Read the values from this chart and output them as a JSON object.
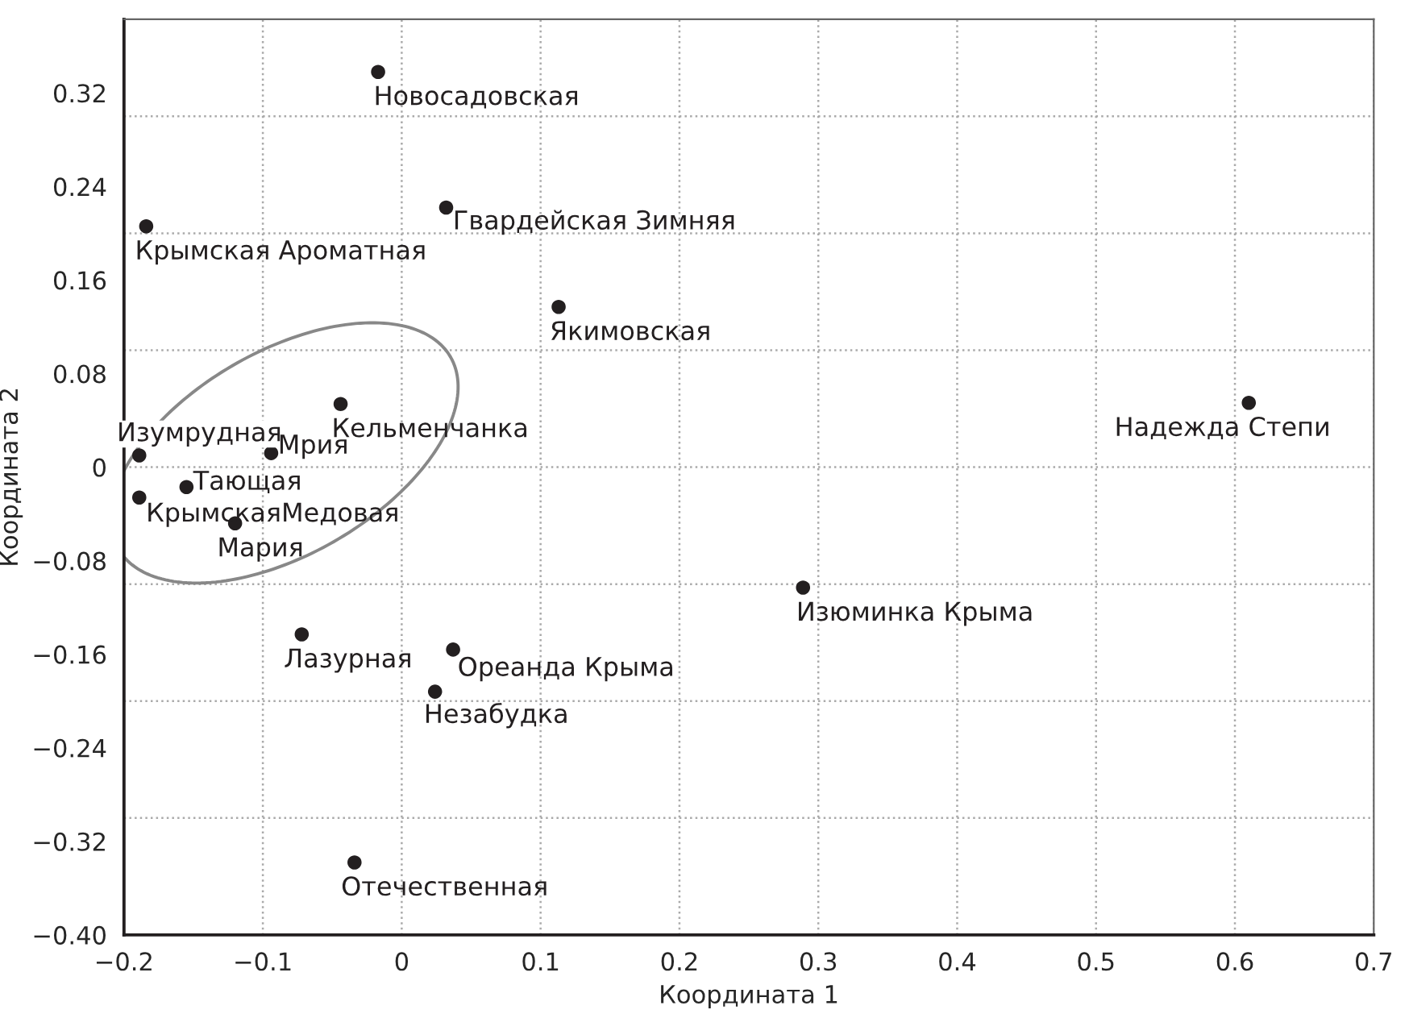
{
  "chart_data": {
    "type": "scatter",
    "xlabel": "Координата 1",
    "ylabel": "Координата 2",
    "x": [
      -0.017,
      -0.184,
      0.032,
      0.113,
      -0.044,
      0.61,
      -0.189,
      -0.094,
      -0.155,
      -0.189,
      -0.12,
      0.289,
      -0.072,
      0.037,
      0.024,
      -0.034
    ],
    "series": [
      {
        "color": "#231f20",
        "values": [
          0.338,
          0.206,
          0.222,
          0.137,
          0.054,
          0.055,
          0.01,
          0.012,
          -0.017,
          -0.026,
          -0.048,
          -0.103,
          -0.143,
          -0.156,
          -0.192,
          -0.338
        ]
      }
    ],
    "marker": "circle",
    "annotations": [
      {
        "text": "Новосадовская",
        "x": -0.017,
        "y": 0.338
      },
      {
        "text": "Крымская Ароматная",
        "x": -0.184,
        "y": 0.206
      },
      {
        "text": "Гвардейская Зимняя",
        "x": 0.032,
        "y": 0.222
      },
      {
        "text": "Якимовская",
        "x": 0.113,
        "y": 0.137
      },
      {
        "text": "Кельменчанка",
        "x": -0.044,
        "y": 0.054
      },
      {
        "text": "Надежда Степи",
        "x": 0.61,
        "y": 0.055
      },
      {
        "text": "Изумрудная",
        "x": -0.189,
        "y": 0.01
      },
      {
        "text": "Мрия",
        "x": -0.094,
        "y": 0.012
      },
      {
        "text": "Тающая",
        "x": -0.155,
        "y": -0.017
      },
      {
        "text": "КрымскаяМедовая",
        "x": -0.189,
        "y": -0.026
      },
      {
        "text": "Мария",
        "x": -0.12,
        "y": -0.048
      },
      {
        "text": "Изюминка Крыма",
        "x": 0.289,
        "y": -0.103
      },
      {
        "text": "Лазурная",
        "x": -0.072,
        "y": -0.143
      },
      {
        "text": "Ореанда Крыма",
        "x": 0.037,
        "y": -0.156
      },
      {
        "text": "Незабудка",
        "x": 0.024,
        "y": -0.192
      },
      {
        "text": "Отечественная",
        "x": -0.034,
        "y": -0.338
      }
    ],
    "xlim": [
      -0.2,
      0.7
    ],
    "xticks": [
      {
        "value": -0.2,
        "label": "−0.2"
      },
      {
        "value": -0.1,
        "label": "−0.1"
      },
      0,
      0.1,
      0.2,
      0.3,
      0.4,
      0.5,
      0.6,
      0.7
    ],
    "ylim": [
      -0.4,
      0.383
    ],
    "yticks": [
      {
        "value": -0.4,
        "label": "−0.40"
      },
      {
        "value": -0.32,
        "label": "−0.32"
      },
      {
        "value": -0.24,
        "label": "−0.24"
      },
      {
        "value": -0.16,
        "label": "−0.16"
      },
      {
        "value": -0.08,
        "label": "−0.08"
      },
      0,
      0.08,
      0.16,
      0.24,
      0.32
    ],
    "grid": "x",
    "ref_lines": [
      {
        "axis": "y",
        "value": 0.3,
        "color": "#aaaaaa",
        "line_style": "dotted"
      },
      {
        "axis": "y",
        "value": 0.2,
        "color": "#aaaaaa",
        "line_style": "dotted"
      },
      {
        "axis": "y",
        "value": 0.1,
        "color": "#aaaaaa",
        "line_style": "dotted"
      },
      {
        "axis": "y",
        "value": 0,
        "color": "#aaaaaa",
        "line_style": "dotted"
      },
      {
        "axis": "y",
        "value": -0.1,
        "color": "#aaaaaa",
        "line_style": "dotted"
      },
      {
        "axis": "y",
        "value": -0.2,
        "color": "#aaaaaa",
        "line_style": "dotted"
      },
      {
        "axis": "y",
        "value": -0.3,
        "color": "#aaaaaa",
        "line_style": "dotted"
      }
    ]
  }
}
